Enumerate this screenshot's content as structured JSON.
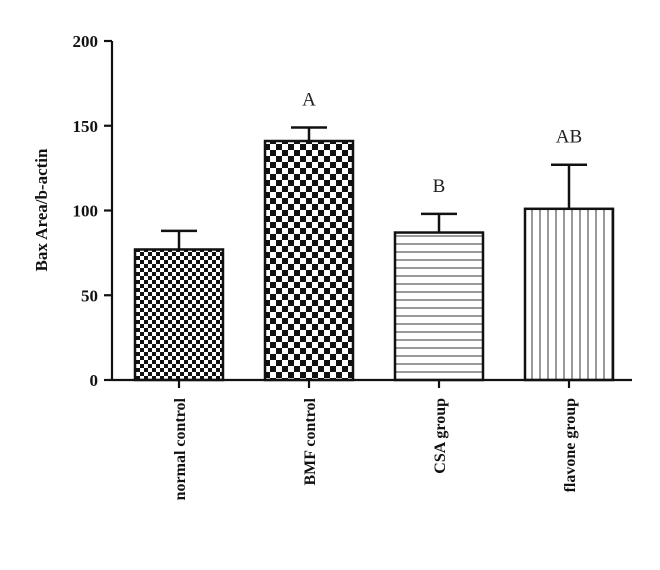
{
  "chart_data": {
    "type": "bar",
    "title": "",
    "xlabel": "",
    "ylabel": "Bax Area/b-actin",
    "ylim": [
      0,
      200
    ],
    "yticks": [
      0,
      50,
      100,
      150,
      200
    ],
    "grid": false,
    "categories": [
      "normal control",
      "BMF control",
      "CSA group",
      "flavone group"
    ],
    "values": [
      77,
      141,
      87,
      101
    ],
    "errors": [
      11,
      8,
      11,
      26
    ],
    "annotations": [
      "",
      "A",
      "B",
      "AB"
    ],
    "patterns": [
      "fine-checker",
      "coarse-checker",
      "horizontal-lines",
      "vertical-lines"
    ]
  }
}
